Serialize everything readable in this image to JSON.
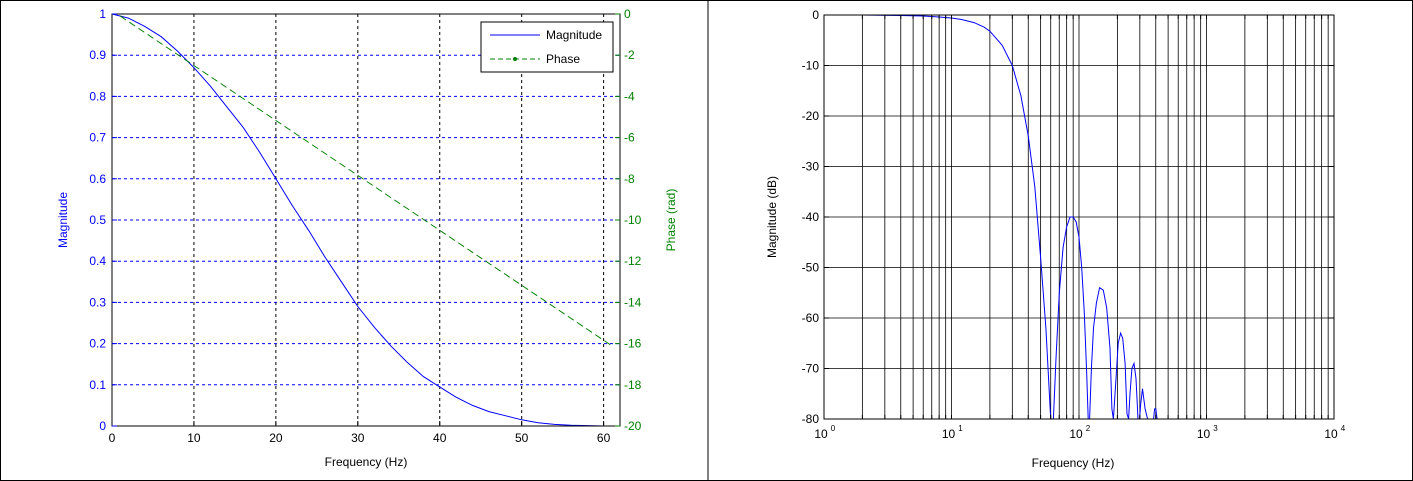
{
  "chart_data": [
    {
      "type": "line",
      "title": "",
      "xlabel": "Frequency (Hz)",
      "ylabel_left": "Magnitude",
      "ylabel_right": "Phase (rad)",
      "xlim": [
        0,
        62
      ],
      "ylim_left": [
        0,
        1
      ],
      "ylim_right": [
        -20,
        0
      ],
      "x_ticks": [
        0,
        10,
        20,
        30,
        40,
        50,
        60
      ],
      "y_ticks_left": [
        0,
        0.1,
        0.2,
        0.3,
        0.4,
        0.5,
        0.6,
        0.7,
        0.8,
        0.9,
        1
      ],
      "y_ticks_right": [
        0,
        -2,
        -4,
        -6,
        -8,
        -10,
        -12,
        -14,
        -16,
        -18,
        -20
      ],
      "grid": true,
      "legend_position": "top-right",
      "legend": [
        "Magnitude",
        "Phase"
      ],
      "left_axis_color": "#0000ff",
      "right_axis_color": "#008000",
      "series": [
        {
          "name": "Magnitude",
          "axis": "left",
          "color": "#0000ff",
          "style": "solid",
          "x": [
            0,
            2,
            4,
            6,
            8,
            10,
            12,
            14,
            16,
            18,
            20,
            22,
            24,
            26,
            28,
            30,
            32,
            34,
            36,
            38,
            40,
            42,
            44,
            46,
            48,
            50,
            52,
            54,
            56,
            58,
            60,
            61
          ],
          "y": [
            1.0,
            0.99,
            0.97,
            0.945,
            0.91,
            0.87,
            0.825,
            0.775,
            0.725,
            0.665,
            0.6,
            0.535,
            0.475,
            0.41,
            0.35,
            0.29,
            0.24,
            0.195,
            0.155,
            0.12,
            0.095,
            0.07,
            0.05,
            0.035,
            0.025,
            0.015,
            0.008,
            0.004,
            0.002,
            0.001,
            0.0,
            0.0
          ]
        },
        {
          "name": "Phase",
          "axis": "right",
          "color": "#008000",
          "style": "dashed",
          "marker_in_legend": "dot",
          "x": [
            1,
            61
          ],
          "y": [
            -0.1,
            -16.1
          ]
        }
      ]
    },
    {
      "type": "line",
      "title": "",
      "xlabel": "Frequency (Hz)",
      "ylabel": "Magnitude (dB)",
      "xscale": "log",
      "xlim": [
        1,
        10000
      ],
      "ylim": [
        -80,
        0
      ],
      "x_ticks": [
        {
          "base": "10",
          "exp": "0"
        },
        {
          "base": "10",
          "exp": "1"
        },
        {
          "base": "10",
          "exp": "2"
        },
        {
          "base": "10",
          "exp": "3"
        },
        {
          "base": "10",
          "exp": "4"
        }
      ],
      "y_ticks": [
        0,
        -10,
        -20,
        -30,
        -40,
        -50,
        -60,
        -70,
        -80
      ],
      "grid": true,
      "series": [
        {
          "color": "#0000ff",
          "style": "solid",
          "x": [
            1,
            2,
            4,
            6,
            8,
            10,
            12,
            15,
            18,
            20,
            25,
            30,
            35,
            40,
            45,
            50,
            55,
            60,
            63,
            66,
            70,
            75,
            80,
            85,
            90,
            95,
            100,
            105,
            110,
            115,
            118,
            121,
            125,
            130,
            137,
            145,
            155,
            165,
            175,
            181,
            186,
            195,
            203,
            212,
            220,
            230,
            238,
            245,
            251,
            260,
            270,
            280,
            290,
            298,
            305,
            315,
            330,
            345,
            360,
            375,
            385,
            392,
            400,
            410
          ],
          "y": [
            0,
            0,
            -0.1,
            -0.2,
            -0.4,
            -0.6,
            -0.9,
            -1.5,
            -2.4,
            -3.2,
            -6,
            -10,
            -16,
            -24,
            -34,
            -48,
            -62,
            -80,
            -80,
            -68,
            -55,
            -46,
            -42,
            -40,
            -40,
            -41,
            -44,
            -50,
            -59,
            -71,
            -80,
            -80,
            -70,
            -62,
            -57,
            -54,
            -54.5,
            -58,
            -66,
            -78,
            -80,
            -72,
            -65,
            -63,
            -64,
            -69,
            -79,
            -80,
            -75,
            -70,
            -69,
            -72,
            -80,
            -80,
            -77,
            -74,
            -78,
            -80,
            -80,
            -80,
            -80,
            -78,
            -78,
            -80
          ]
        }
      ]
    }
  ]
}
